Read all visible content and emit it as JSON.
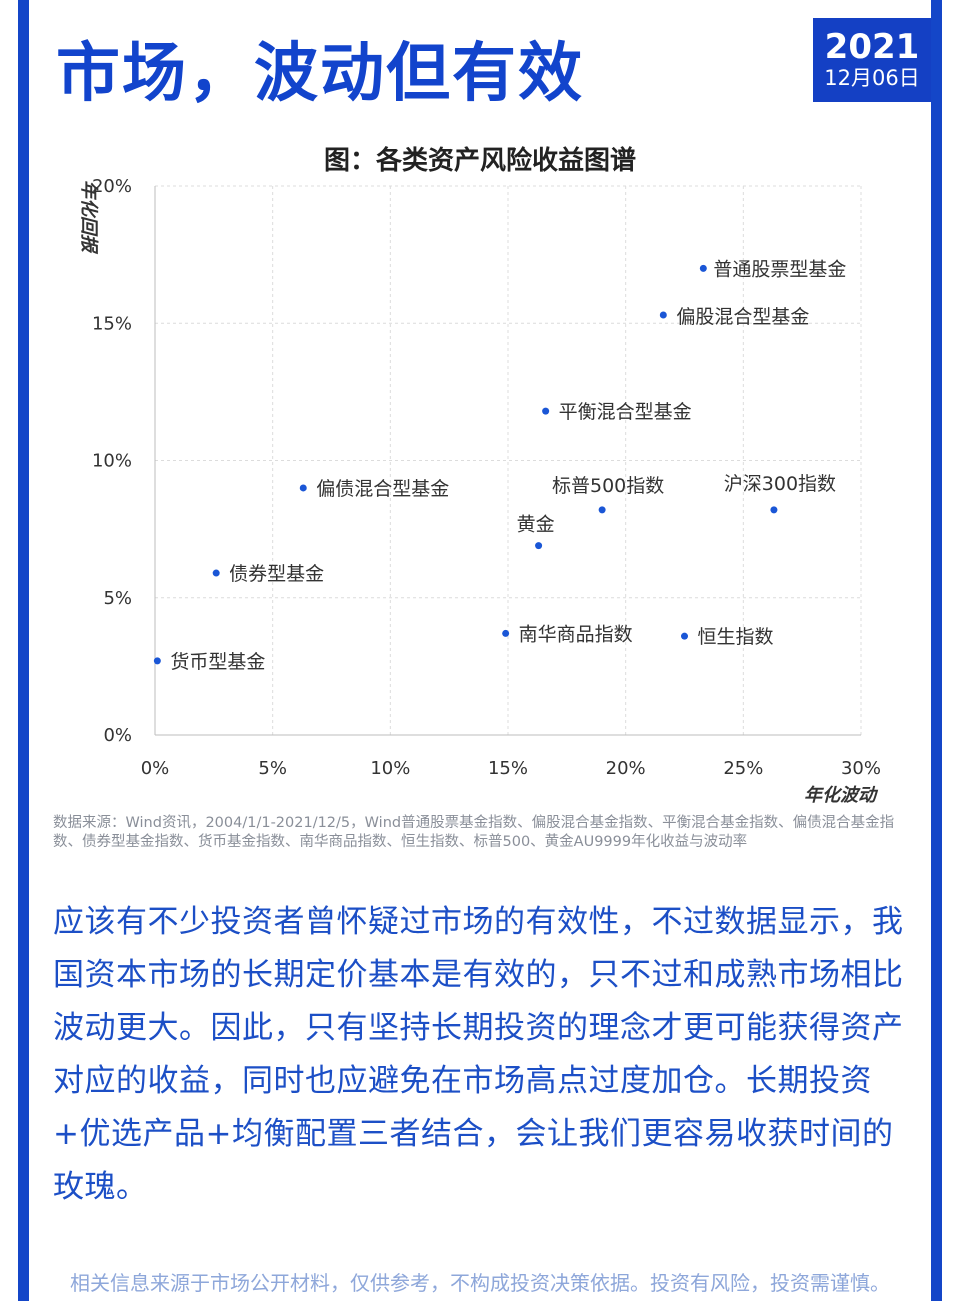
{
  "header": {
    "title": "市场，波动但有效",
    "date_year": "2021",
    "date_day": "12月06日"
  },
  "chart_data": {
    "type": "scatter",
    "title": "图：各类资产风险收益图谱",
    "xlabel": "年化波动",
    "ylabel": "年化回报",
    "xlim": [
      0,
      30
    ],
    "ylim": [
      0,
      20
    ],
    "x_ticks": [
      "0%",
      "5%",
      "10%",
      "15%",
      "20%",
      "25%",
      "30%"
    ],
    "y_ticks": [
      "0%",
      "5%",
      "10%",
      "15%",
      "20%"
    ],
    "grid": true,
    "point_color": "#1a56d6",
    "points": [
      {
        "label": "普通股票型基金",
        "x": 23.3,
        "y": 17.0
      },
      {
        "label": "偏股混合型基金",
        "x": 21.6,
        "y": 15.3
      },
      {
        "label": "平衡混合型基金",
        "x": 16.6,
        "y": 11.8
      },
      {
        "label": "偏债混合型基金",
        "x": 6.3,
        "y": 9.0
      },
      {
        "label": "标普500指数",
        "x": 19.0,
        "y": 8.2
      },
      {
        "label": "沪深300指数",
        "x": 26.3,
        "y": 8.2
      },
      {
        "label": "黄金",
        "x": 16.3,
        "y": 6.9
      },
      {
        "label": "债券型基金",
        "x": 2.6,
        "y": 5.9
      },
      {
        "label": "南华商品指数",
        "x": 14.9,
        "y": 3.7
      },
      {
        "label": "恒生指数",
        "x": 22.5,
        "y": 3.6
      },
      {
        "label": "货币型基金",
        "x": 0.1,
        "y": 2.7
      }
    ]
  },
  "source_note": "数据来源：Wind资讯，2004/1/1-2021/12/5，Wind普通股票基金指数、偏股混合基金指数、平衡混合基金指数、偏债混合基金指数、债券型基金指数、货币基金指数、南华商品指数、恒生指数、标普500、黄金AU9999年化收益与波动率",
  "paragraph": "应该有不少投资者曾怀疑过市场的有效性，不过数据显示，我国资本市场的长期定价基本是有效的，只不过和成熟市场相比波动更大。因此，只有坚持长期投资的理念才更可能获得资产对应的收益，同时也应避免在市场高点过度加仓。长期投资+优选产品+均衡配置三者结合，会让我们更容易收获时间的玫瑰。",
  "disclaimer": "相关信息来源于市场公开材料，仅供参考，不构成投资决策依据。投资有风险，投资需谨慎。"
}
